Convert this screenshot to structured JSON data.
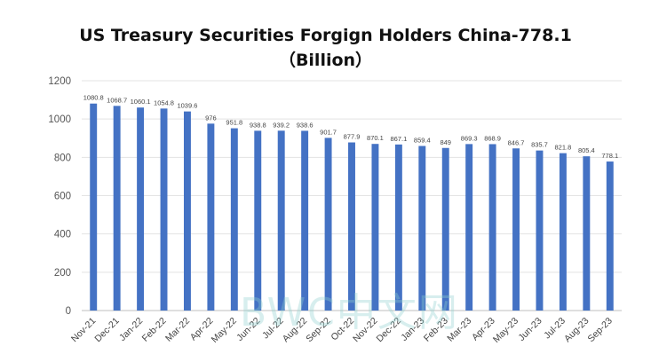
{
  "chart_data": {
    "type": "bar",
    "title_line1": "US Treasury Securities Forgign Holders China-778.1",
    "title_line2": "（Billion）",
    "xlabel": "",
    "ylabel": "",
    "ylim": [
      0,
      1200
    ],
    "yticks": [
      0,
      200,
      400,
      600,
      800,
      1000,
      1200
    ],
    "grid": true,
    "bar_color": "#4472c4",
    "categories": [
      "Nov-21",
      "Dec-21",
      "Jan-22",
      "Feb-22",
      "Mar-22",
      "Apr-22",
      "May-22",
      "Jun-22",
      "Jul-22",
      "Aug-22",
      "Sep-22",
      "Oct-22",
      "Nov-22",
      "Dec-22",
      "Jan-23",
      "Feb-23",
      "Mar-23",
      "Apr-23",
      "May-23",
      "Jun-23",
      "Jul-23",
      "Aug-23",
      "Sep-23"
    ],
    "values": [
      1080.8,
      1068.7,
      1060.1,
      1054.8,
      1039.6,
      976,
      951.8,
      938.8,
      939.2,
      938.6,
      901.7,
      877.9,
      870.1,
      867.1,
      859.4,
      849,
      869.3,
      868.9,
      846.7,
      835.7,
      821.8,
      805.4,
      778.1
    ],
    "value_labels": [
      "1080.8",
      "1068.7",
      "1060.1",
      "1054.8",
      "1039.6",
      "976",
      "951.8",
      "938.8",
      "939.2",
      "938.6",
      "901.7",
      "877.9",
      "870.1",
      "867.1",
      "859.4",
      "849",
      "869.3",
      "868.9",
      "846.7",
      "835.7",
      "821.8",
      "805.4",
      "778.1"
    ]
  },
  "watermark": "BWC中文网"
}
